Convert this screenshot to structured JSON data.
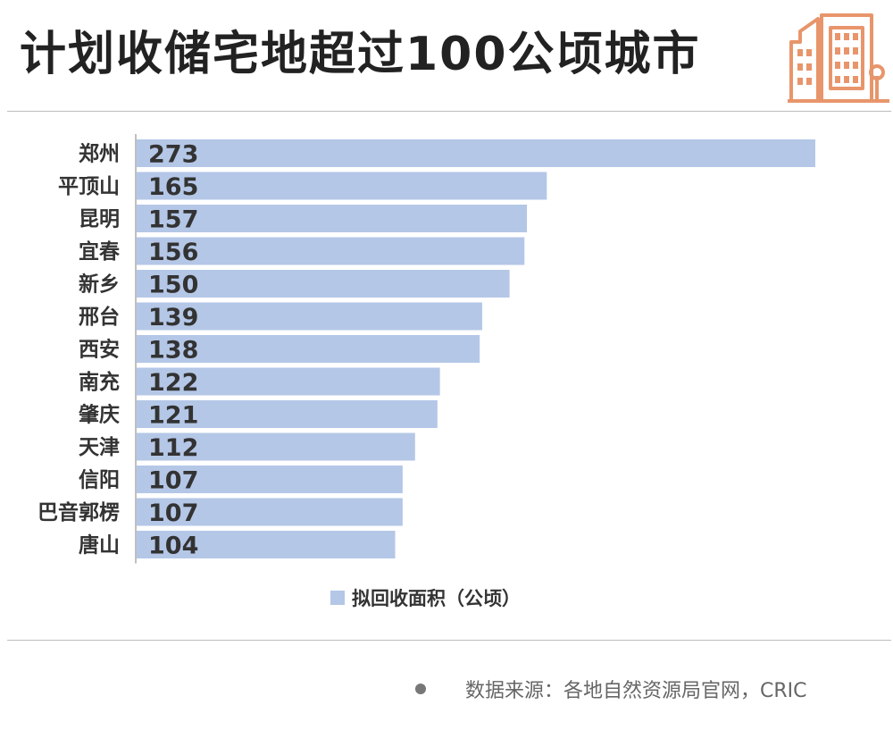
{
  "header": {
    "title": "计划收储宅地超过100公顷城市"
  },
  "chart_data": {
    "type": "bar",
    "orientation": "horizontal",
    "categories": [
      "郑州",
      "平顶山",
      "昆明",
      "宜春",
      "新乡",
      "邢台",
      "西安",
      "南充",
      "肇庆",
      "天津",
      "信阳",
      "巴音郭楞",
      "唐山"
    ],
    "series": [
      {
        "name": "拟回收面积（公顷）",
        "values": [
          273,
          165,
          157,
          156,
          150,
          139,
          138,
          122,
          121,
          112,
          107,
          107,
          104
        ],
        "color": "#b4c7e7"
      }
    ],
    "xlim": [
      0,
      273
    ],
    "data_labels": true,
    "grid": false,
    "legend_position": "bottom"
  },
  "legend": {
    "label": "拟回收面积（公顷）",
    "color": "#b4c7e7"
  },
  "footer": {
    "source": "数据来源：各地自然资源局官网，CRIC"
  },
  "colors": {
    "bar": "#b4c7e7",
    "axis": "#aaaaaa",
    "accent": "#e8956b",
    "title": "#222222"
  }
}
